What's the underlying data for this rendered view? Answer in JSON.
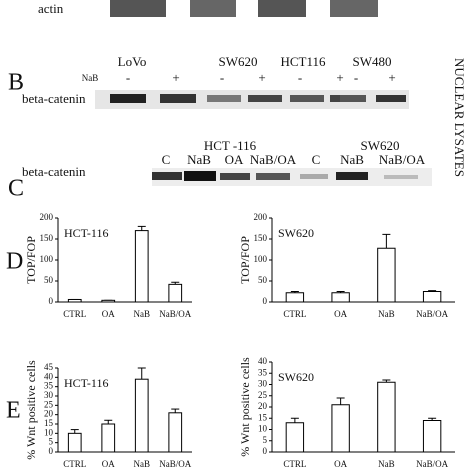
{
  "figure": {
    "actin_label": "actin",
    "side_label": "NUCLEAR LYSATES",
    "panel_b": {
      "letter": "B",
      "cell_lines": [
        "LoVo",
        "SW620",
        "HCT116",
        "SW480"
      ],
      "treatment_label": "NaB",
      "treatments": [
        "-",
        "+",
        "-",
        "+",
        "-",
        "+",
        "-",
        "+"
      ],
      "row_label": "beta-catenin"
    },
    "panel_c": {
      "letter": "C",
      "groups": [
        "HCT -116",
        "SW620"
      ],
      "lanes": [
        "C",
        "NaB",
        "OA",
        "NaB/OA",
        "C",
        "NaB",
        "NaB/OA"
      ],
      "row_label": "beta-catenin"
    },
    "panel_d_letter": "D",
    "panel_e_letter": "E"
  },
  "chart_data": [
    {
      "type": "bar",
      "title": "HCT-116",
      "y_label": "TOP/FOP",
      "categories": [
        "CTRL",
        "OA",
        "NaB",
        "NaB/OA"
      ],
      "values": [
        6,
        4,
        170,
        42
      ],
      "errors": [
        0,
        0,
        10,
        5
      ],
      "ylim": [
        0,
        200
      ],
      "yticks": [
        0,
        50,
        100,
        150,
        200
      ],
      "color": "#ffffff"
    },
    {
      "type": "bar",
      "title": "SW620",
      "y_label": "TOP/FOP",
      "categories": [
        "CTRL",
        "OA",
        "NaB",
        "NaB/OA"
      ],
      "values": [
        22,
        22,
        128,
        25
      ],
      "errors": [
        3,
        3,
        33,
        2
      ],
      "ylim": [
        0,
        200
      ],
      "yticks": [
        0,
        50,
        100,
        150,
        200
      ],
      "color": "#ffffff"
    },
    {
      "type": "bar",
      "title": "HCT-116",
      "y_label": "% Wnt positive cells",
      "categories": [
        "CTRL",
        "OA",
        "NaB",
        "NaB/OA"
      ],
      "values": [
        10,
        15,
        39,
        21
      ],
      "errors": [
        2,
        2,
        6,
        2
      ],
      "ylim": [
        0,
        45
      ],
      "yticks": [
        0,
        5,
        10,
        15,
        20,
        25,
        30,
        35,
        40,
        45
      ],
      "color": "#ffffff"
    },
    {
      "type": "bar",
      "title": "SW620",
      "y_label": "% Wnt positive cells",
      "categories": [
        "CTRL",
        "OA",
        "NaB",
        "NaB/OA"
      ],
      "values": [
        13,
        21,
        31,
        14
      ],
      "errors": [
        2,
        3,
        1,
        1
      ],
      "ylim": [
        0,
        40
      ],
      "yticks": [
        0,
        5,
        10,
        15,
        20,
        25,
        30,
        35,
        40
      ],
      "color": "#ffffff"
    }
  ]
}
